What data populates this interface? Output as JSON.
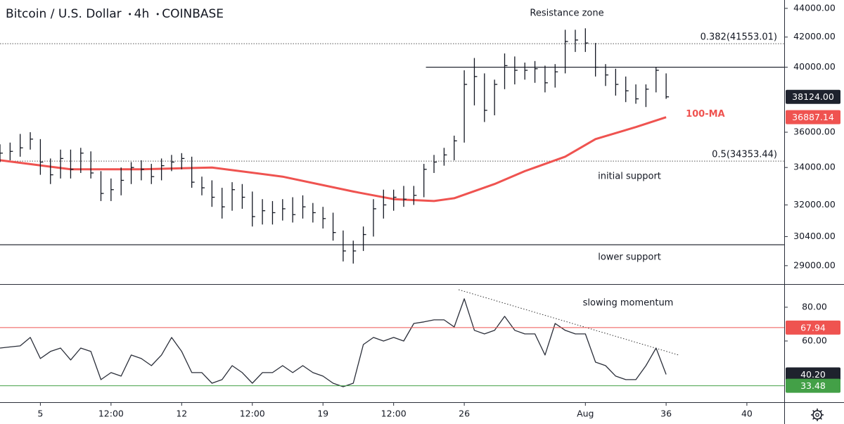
{
  "chart_data": [
    {
      "type": "ohlc",
      "title": [
        "Bitcoin / U.S. Dollar",
        "4h",
        "COINBASE"
      ],
      "log_scale": true,
      "xlim": [
        3.0,
        41.85
      ],
      "ylim": [
        28180,
        44600
      ],
      "yticks": [
        {
          "value": 44000,
          "label": "44000.00"
        },
        {
          "value": 42000,
          "label": "42000.00"
        },
        {
          "value": 40000,
          "label": "40000.00"
        },
        {
          "value": 36000,
          "label": "36000.00"
        },
        {
          "value": 34000,
          "label": "34000.00"
        },
        {
          "value": 32000,
          "label": "32000.00"
        },
        {
          "value": 30400,
          "label": "30400.00"
        },
        {
          "value": 29000,
          "label": "29000.00"
        }
      ],
      "color": "#131722",
      "x": [
        3.0,
        3.5,
        4.0,
        4.5,
        5.0,
        5.5,
        6.0,
        6.5,
        7.0,
        7.5,
        8.0,
        8.5,
        9.0,
        9.5,
        10.0,
        10.5,
        11.0,
        11.5,
        12.0,
        12.5,
        13.0,
        13.5,
        14.0,
        14.5,
        15.0,
        15.5,
        16.0,
        16.5,
        17.0,
        17.5,
        18.0,
        18.5,
        19.0,
        19.5,
        20.0,
        20.5,
        21.0,
        21.5,
        22.0,
        22.5,
        23.0,
        23.5,
        24.0,
        24.5,
        25.0,
        25.5,
        26.0,
        26.5,
        27.0,
        27.5,
        28.0,
        28.5,
        29.0,
        29.5,
        30.0,
        30.5,
        31.0,
        31.5,
        32.0,
        32.5,
        33.0,
        33.5,
        34.0,
        34.5,
        35.0,
        35.5,
        36.0
      ],
      "high": [
        35300,
        35400,
        35900,
        36000,
        35600,
        34500,
        35000,
        35000,
        35100,
        34900,
        33800,
        33400,
        34000,
        34300,
        34400,
        34200,
        34500,
        34700,
        34800,
        34600,
        33500,
        33300,
        32900,
        33200,
        33100,
        32700,
        32300,
        32200,
        32300,
        32400,
        32500,
        32100,
        31900,
        31600,
        30700,
        30200,
        30900,
        32300,
        32800,
        32800,
        33000,
        33000,
        34200,
        34700,
        35100,
        35800,
        39800,
        40600,
        39600,
        39200,
        40900,
        40700,
        40300,
        40400,
        40100,
        40200,
        42500,
        42500,
        42600,
        41600,
        40200,
        39900,
        39400,
        38900,
        38900,
        40000,
        39600
      ],
      "low": [
        34300,
        34400,
        34600,
        35000,
        33600,
        33100,
        33400,
        33400,
        33700,
        33400,
        32200,
        32200,
        32500,
        33100,
        33300,
        33100,
        33300,
        33800,
        33900,
        32900,
        32500,
        31900,
        31300,
        31700,
        31800,
        30900,
        31000,
        31000,
        31200,
        31100,
        31300,
        31100,
        30800,
        30200,
        29200,
        29100,
        29700,
        30400,
        31300,
        31700,
        31900,
        32000,
        32400,
        33700,
        34100,
        34400,
        35400,
        37600,
        36600,
        37000,
        38600,
        38900,
        39200,
        39000,
        38400,
        38700,
        39600,
        41000,
        41000,
        39400,
        38800,
        38200,
        37800,
        37700,
        37500,
        38400,
        38000
      ],
      "close": [
        34800,
        34900,
        35100,
        35600,
        34300,
        33600,
        34500,
        33900,
        34800,
        33700,
        32600,
        32800,
        33300,
        34000,
        33900,
        33500,
        34100,
        34300,
        34500,
        33200,
        32900,
        32400,
        31900,
        32800,
        32400,
        31400,
        31700,
        31600,
        31800,
        31500,
        31900,
        31600,
        31300,
        30600,
        29700,
        29700,
        30500,
        31800,
        32000,
        32400,
        32300,
        32500,
        33900,
        34300,
        34700,
        35500,
        38900,
        39400,
        37300,
        38900,
        40100,
        39800,
        39800,
        39900,
        39000,
        39700,
        41700,
        41800,
        41600,
        40000,
        39500,
        38900,
        38500,
        38000,
        38600,
        39800,
        38124
      ],
      "ma": {
        "name": "100-MA",
        "color": "#ef5350",
        "x": [
          3.0,
          6.5,
          10.0,
          13.5,
          17.0,
          20.5,
          22.5,
          24.5,
          25.5,
          27.5,
          29.0,
          31.0,
          32.5,
          34.5,
          36.0
        ],
        "values": [
          34400,
          33900,
          33900,
          34000,
          33500,
          32700,
          32300,
          32200,
          32350,
          33100,
          33800,
          34600,
          35600,
          36300,
          36887.14
        ]
      },
      "levels": [
        {
          "value": 41553.01,
          "label": "0.382(41553.01)"
        },
        {
          "value": 34353.44,
          "label": "0.5(34353.44)"
        }
      ],
      "lines": [
        {
          "value": 40000,
          "from": 24.1
        },
        {
          "value": 30000,
          "from": 3.0
        }
      ],
      "annotations": [
        "Resistance zone",
        "initial support",
        "lower support"
      ],
      "tags": [
        {
          "value": 38124,
          "label": "38124.00",
          "color": "#1e222d"
        },
        {
          "value": 36887.14,
          "label": "36887.14",
          "color": "#ef5350"
        }
      ]
    },
    {
      "type": "line",
      "xlim": [
        3.0,
        41.85
      ],
      "ylim": [
        23.75,
        93.3
      ],
      "yticks": [
        {
          "value": 80,
          "label": "80.00"
        },
        {
          "value": 60,
          "label": "60.00"
        }
      ],
      "xticks": [
        5,
        {
          "value": 8.5,
          "label": "12:00"
        },
        12,
        {
          "value": 15.5,
          "label": "12:00"
        },
        19,
        {
          "value": 22.5,
          "label": "12:00"
        },
        26,
        {
          "value": 32,
          "label": "Aug"
        },
        36,
        40
      ],
      "color": "#2a2e39",
      "x": [
        3.0,
        3.5,
        4.0,
        4.5,
        5.0,
        5.5,
        6.0,
        6.5,
        7.0,
        7.5,
        8.0,
        8.5,
        9.0,
        9.5,
        10.0,
        10.5,
        11.0,
        11.5,
        12.0,
        12.5,
        13.0,
        13.5,
        14.0,
        14.5,
        15.0,
        15.5,
        16.0,
        16.5,
        17.0,
        17.5,
        18.0,
        18.5,
        19.0,
        19.5,
        20.0,
        20.5,
        21.0,
        21.5,
        22.0,
        22.5,
        23.0,
        23.5,
        24.0,
        24.5,
        25.0,
        25.5,
        26.0,
        26.5,
        27.0,
        27.5,
        28.0,
        28.5,
        29.0,
        29.5,
        30.0,
        30.5,
        31.0,
        31.5,
        32.0,
        32.5,
        33.0,
        33.5,
        34.0,
        34.5,
        35.0,
        35.5,
        36.0
      ],
      "values": [
        55.8,
        56.5,
        57.1,
        62.1,
        49.6,
        53.8,
        55.8,
        48.8,
        55.8,
        53.8,
        37.1,
        41.3,
        39.2,
        51.7,
        49.6,
        45.4,
        51.7,
        62.1,
        53.8,
        41.3,
        41.3,
        35,
        37.1,
        45.4,
        41.3,
        35,
        41.3,
        41.3,
        45.4,
        41.3,
        45.4,
        41.3,
        39.2,
        35,
        32.9,
        35,
        57.9,
        62.1,
        60,
        62.1,
        60,
        70.4,
        71.3,
        72.5,
        72.5,
        68.3,
        85,
        66.3,
        64.2,
        66.3,
        74.6,
        66.3,
        64.2,
        64.2,
        51.7,
        70.4,
        66.3,
        64.2,
        64.2,
        47.5,
        45.4,
        39.2,
        37.1,
        37.1,
        45.4,
        55.8,
        40.2
      ],
      "trendline": {
        "x": [
          25.72,
          36.62
        ],
        "y": [
          90.4,
          51.7
        ]
      },
      "annotations": [
        "slowing momentum"
      ],
      "tags": [
        {
          "value": 67.94,
          "label": "67.94",
          "color": "#ef5350",
          "line": true
        },
        {
          "value": 40.2,
          "label": "40.20",
          "color": "#1e222d",
          "line": false
        },
        {
          "value": 33.48,
          "label": "33.48",
          "color": "#43a047",
          "line": true
        }
      ]
    }
  ]
}
